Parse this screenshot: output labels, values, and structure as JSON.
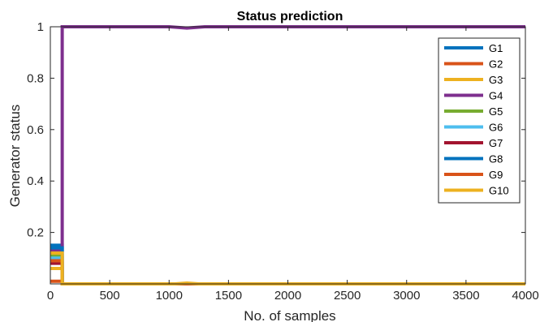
{
  "chart_data": {
    "type": "line",
    "title": "Status prediction",
    "xlabel": "No. of samples",
    "ylabel": "Generator status",
    "xlim": [
      0,
      4000
    ],
    "ylim": [
      0,
      1
    ],
    "xticks": [
      0,
      500,
      1000,
      1500,
      2000,
      2500,
      3000,
      3500,
      4000
    ],
    "yticks": [
      0.2,
      0.4,
      0.6,
      0.8,
      1
    ],
    "ytick_labels": [
      "0.2",
      "0.4",
      "0.6",
      "0.8",
      "1"
    ],
    "grid": false,
    "legend_position": "top-right",
    "series": [
      {
        "name": "G1",
        "color": "#0072BD",
        "points": [
          [
            0,
            0.15
          ],
          [
            100,
            0.15
          ],
          [
            100,
            0
          ],
          [
            4000,
            0
          ]
        ]
      },
      {
        "name": "G2",
        "color": "#D95319",
        "points": [
          [
            0,
            0.01
          ],
          [
            100,
            0.01
          ],
          [
            100,
            0
          ],
          [
            4000,
            0
          ]
        ]
      },
      {
        "name": "G3",
        "color": "#EDB120",
        "points": [
          [
            0,
            0.06
          ],
          [
            100,
            0.06
          ],
          [
            100,
            0
          ],
          [
            4000,
            0
          ]
        ]
      },
      {
        "name": "G4",
        "color": "#7E2F8E",
        "points": [
          [
            0,
            0.13
          ],
          [
            100,
            0.13
          ],
          [
            100,
            1
          ],
          [
            1000,
            1
          ],
          [
            1150,
            0.995
          ],
          [
            1300,
            1
          ],
          [
            4000,
            1
          ]
        ]
      },
      {
        "name": "G5",
        "color": "#77AC30",
        "points": [
          [
            0,
            0.11
          ],
          [
            100,
            0.11
          ],
          [
            100,
            0
          ],
          [
            4000,
            0
          ]
        ]
      },
      {
        "name": "G6",
        "color": "#4DBEEE",
        "points": [
          [
            0,
            0.1
          ],
          [
            100,
            0.1
          ],
          [
            100,
            0
          ],
          [
            4000,
            0
          ]
        ]
      },
      {
        "name": "G7",
        "color": "#A2142F",
        "points": [
          [
            0,
            0.08
          ],
          [
            100,
            0.08
          ],
          [
            100,
            0
          ],
          [
            4000,
            0
          ]
        ]
      },
      {
        "name": "G8",
        "color": "#0072BD",
        "points": [
          [
            0,
            0.14
          ],
          [
            100,
            0.14
          ],
          [
            100,
            0
          ],
          [
            4000,
            0
          ]
        ]
      },
      {
        "name": "G9",
        "color": "#D95319",
        "points": [
          [
            0,
            0.09
          ],
          [
            100,
            0.09
          ],
          [
            100,
            0
          ],
          [
            4000,
            0
          ]
        ]
      },
      {
        "name": "G10",
        "color": "#EDB120",
        "points": [
          [
            0,
            0.12
          ],
          [
            100,
            0.12
          ],
          [
            100,
            0
          ],
          [
            1050,
            0
          ],
          [
            1150,
            0.003
          ],
          [
            1250,
            0
          ],
          [
            4000,
            0
          ]
        ]
      }
    ]
  }
}
